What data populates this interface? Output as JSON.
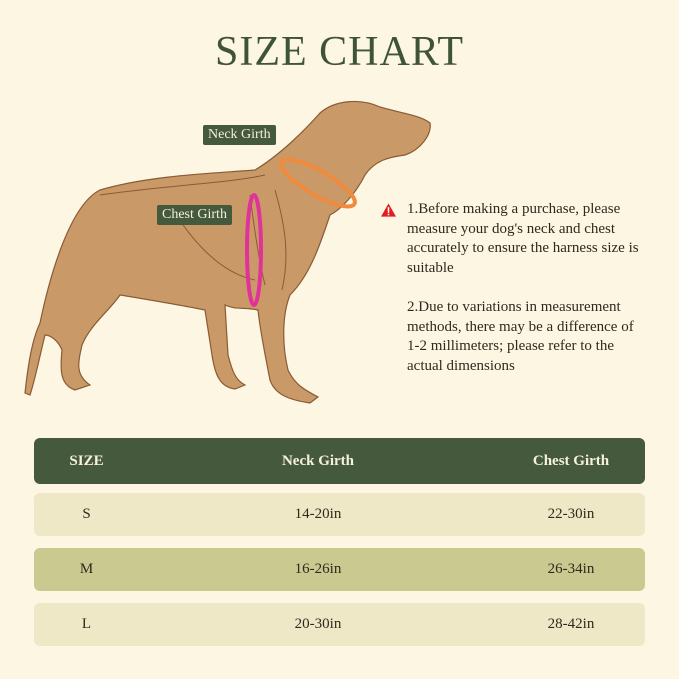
{
  "title": "SIZE CHART",
  "labels": {
    "neck": "Neck Girth",
    "chest": "Chest Girth"
  },
  "icons": {
    "warning": "warning-triangle-icon"
  },
  "colors": {
    "header": "#45593c",
    "row_light": "#efe8c6",
    "row_dark": "#cac98f",
    "neck_marker": "#f08a3c",
    "chest_marker": "#e0339a",
    "warning": "#e02020"
  },
  "notes": [
    "1.Before making a purchase, please measure your dog's neck and chest accurately to ensure the harness size is suitable",
    "2.Due to variations in measurement methods, there may be a difference of 1-2 millimeters; please refer to the actual dimensions"
  ],
  "table": {
    "headers": [
      "SIZE",
      "Neck Girth",
      "Chest Girth"
    ],
    "rows": [
      [
        "S",
        "14-20in",
        "22-30in"
      ],
      [
        "M",
        "16-26in",
        "26-34in"
      ],
      [
        "L",
        "20-30in",
        "28-42in"
      ]
    ]
  }
}
